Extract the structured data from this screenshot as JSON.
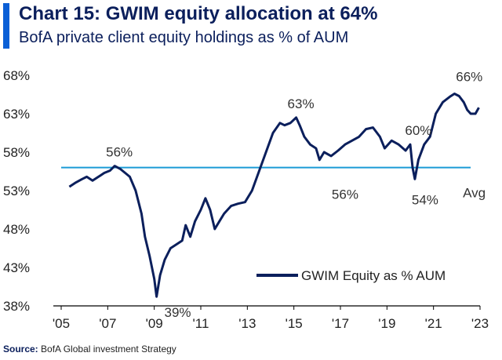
{
  "header": {
    "title": "Chart 15: GWIM equity allocation at 64%",
    "subtitle": "BofA private client equity holdings as % of AUM"
  },
  "source": {
    "label": "Source:",
    "text": "BofA Global investment Strategy"
  },
  "colors": {
    "series": "#0b1f5c",
    "average": "#1a9bd6",
    "accent": "#0a5fd6"
  },
  "chart_data": {
    "type": "line",
    "title": "Chart 15: GWIM equity allocation at 64%",
    "subtitle": "BofA private client equity holdings as % of AUM",
    "xlabel": "",
    "ylabel": "",
    "xlim": [
      2005,
      2023
    ],
    "ylim": [
      38,
      68
    ],
    "x_ticks": [
      2005,
      2007,
      2009,
      2011,
      2013,
      2015,
      2017,
      2019,
      2021,
      2023
    ],
    "x_tick_labels": [
      "'05",
      "'07",
      "'09",
      "'11",
      "'13",
      "'15",
      "'17",
      "'19",
      "'21",
      "'23"
    ],
    "y_ticks": [
      38,
      43,
      48,
      53,
      58,
      63,
      68
    ],
    "y_tick_labels": [
      "38%",
      "43%",
      "48%",
      "53%",
      "58%",
      "63%",
      "68%"
    ],
    "series": [
      {
        "name": "GWIM Equity as % AUM",
        "x": [
          2005.35,
          2005.6,
          2005.9,
          2006.1,
          2006.35,
          2006.6,
          2006.85,
          2007.1,
          2007.3,
          2007.55,
          2007.75,
          2007.95,
          2008.2,
          2008.45,
          2008.6,
          2008.8,
          2009.0,
          2009.1,
          2009.25,
          2009.45,
          2009.7,
          2009.95,
          2010.2,
          2010.35,
          2010.55,
          2010.75,
          2011.0,
          2011.2,
          2011.4,
          2011.6,
          2011.8,
          2012.0,
          2012.3,
          2012.6,
          2012.9,
          2013.2,
          2013.5,
          2013.8,
          2014.1,
          2014.4,
          2014.6,
          2014.85,
          2015.1,
          2015.25,
          2015.45,
          2015.7,
          2015.95,
          2016.1,
          2016.3,
          2016.6,
          2016.9,
          2017.2,
          2017.5,
          2017.8,
          2018.1,
          2018.4,
          2018.7,
          2018.9,
          2019.2,
          2019.5,
          2019.8,
          2020.0,
          2020.1,
          2020.2,
          2020.35,
          2020.6,
          2020.85,
          2021.1,
          2021.4,
          2021.7,
          2021.9,
          2022.1,
          2022.3,
          2022.45,
          2022.6,
          2022.8,
          2022.95
        ],
        "values": [
          53.5,
          54.0,
          54.5,
          54.8,
          54.3,
          54.8,
          55.3,
          55.6,
          56.2,
          55.8,
          55.3,
          54.8,
          53.0,
          50.0,
          47.0,
          44.5,
          41.5,
          39.2,
          42.0,
          44.0,
          45.5,
          46.0,
          46.5,
          48.5,
          47.0,
          49.0,
          50.5,
          52.0,
          50.5,
          48.0,
          49.0,
          50.0,
          51.0,
          51.3,
          51.5,
          53.0,
          55.5,
          58.0,
          60.5,
          61.8,
          61.5,
          61.8,
          62.5,
          61.5,
          60.0,
          59.0,
          58.5,
          57.0,
          58.0,
          57.5,
          58.2,
          59.0,
          59.5,
          60.0,
          61.0,
          61.2,
          60.0,
          58.5,
          59.5,
          59.0,
          58.2,
          59.0,
          56.0,
          54.5,
          57.0,
          59.0,
          60.0,
          63.0,
          64.5,
          65.2,
          65.6,
          65.3,
          64.5,
          63.5,
          63.0,
          63.0,
          63.8
        ]
      },
      {
        "name": "Avg",
        "type": "hline",
        "value": 56.0
      }
    ],
    "annotations": [
      {
        "text": "56%",
        "x": 2007.5,
        "y": 56.2
      },
      {
        "text": "39%",
        "x": 2009.4,
        "y": 39.2
      },
      {
        "text": "63%",
        "x": 2015.3,
        "y": 62.5
      },
      {
        "text": "56%",
        "x": 2017.2,
        "y": 56.0
      },
      {
        "text": "60%",
        "x": 2020.35,
        "y": 59.0
      },
      {
        "text": "54%",
        "x": 2020.3,
        "y": 54.5
      },
      {
        "text": "66%",
        "x": 2022.2,
        "y": 65.6
      },
      {
        "text": "Avg",
        "x": 2022.75,
        "y": 56.0
      }
    ],
    "legend": {
      "label": "GWIM Equity as % AUM",
      "position": "bottom-right"
    }
  }
}
